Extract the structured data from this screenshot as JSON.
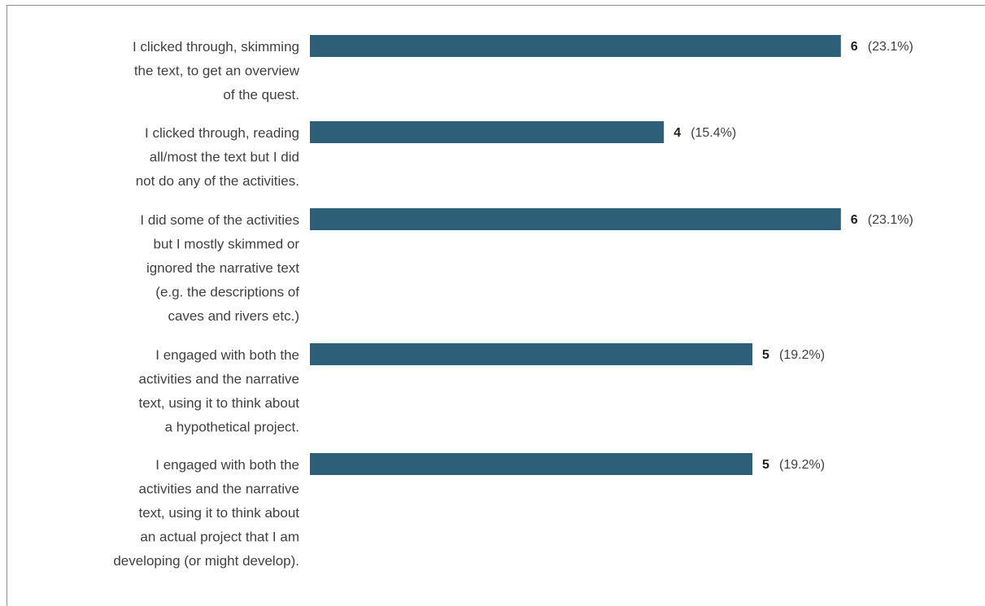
{
  "chart_data": {
    "type": "bar",
    "orientation": "horizontal",
    "bar_color": "#2d6078",
    "grid": false,
    "xlim": [
      0,
      6
    ],
    "categories": [
      [
        "I clicked through, skimming",
        "the text, to get an overview",
        "of the quest."
      ],
      [
        "I clicked through, reading",
        "all/most the text but I did",
        "not do any of the activities."
      ],
      [
        "I did some of the activities",
        "but I mostly skimmed or",
        "ignored the narrative text",
        "(e.g. the descriptions of",
        "caves and rivers etc.)"
      ],
      [
        "I engaged with both the",
        "activities and the narrative",
        "text, using it to think about",
        "a hypothetical project."
      ],
      [
        "I engaged with both the",
        "activities and the narrative",
        "text, using it to think about",
        "an actual project that I am",
        "developing (or might develop)."
      ]
    ],
    "values": [
      6,
      4,
      6,
      5,
      5
    ],
    "percent_labels": [
      "(23.1%)",
      "(15.4%)",
      "(23.1%)",
      "(19.2%)",
      "(19.2%)"
    ]
  }
}
